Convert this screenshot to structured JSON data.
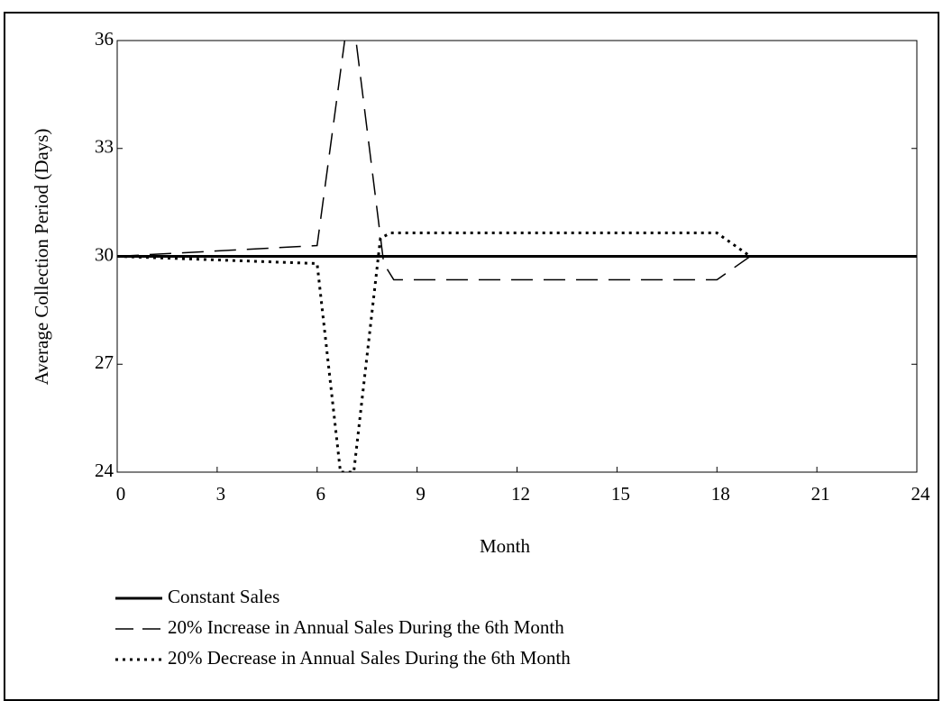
{
  "chart_data": {
    "type": "line",
    "x_label": "Month",
    "y_label": "Average Collection Period (Days)",
    "xlim": [
      0,
      24
    ],
    "xticks": [
      0,
      3,
      6,
      9,
      12,
      15,
      18,
      21,
      24
    ],
    "ylim": [
      24,
      36
    ],
    "yticks": [
      24,
      27,
      30,
      33,
      36
    ],
    "series": [
      {
        "name": "Constant Sales",
        "color": "#000000",
        "style": "solid",
        "x": [
          0,
          24
        ],
        "values": [
          30,
          30
        ]
      },
      {
        "name": "20% Increase in Annual Sales During the 6th Month",
        "color": "#000000",
        "style": "dashed",
        "x": [
          0,
          6,
          6.9,
          7.1,
          8,
          8.3,
          18,
          19,
          24
        ],
        "values": [
          30,
          30.3,
          36.5,
          36.5,
          29.8,
          29.35,
          29.35,
          30,
          30
        ]
      },
      {
        "name": "20% Decrease in Annual Sales During the 6th Month",
        "color": "#000000",
        "style": "dotted",
        "x": [
          0,
          6,
          6.7,
          7.1,
          7.9,
          8.2,
          18,
          19,
          24
        ],
        "values": [
          30,
          29.8,
          24,
          24,
          30.5,
          30.65,
          30.65,
          30,
          30
        ]
      }
    ]
  }
}
